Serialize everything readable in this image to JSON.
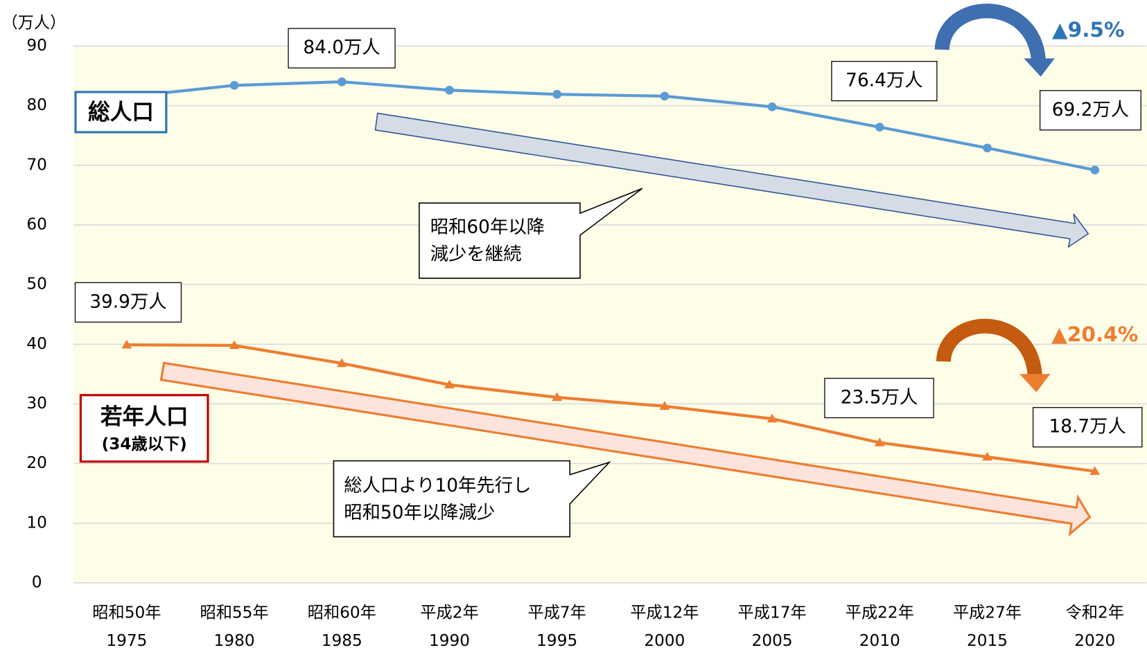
{
  "chart_data": {
    "type": "line",
    "y_unit": "（万人）",
    "categories": [
      "昭和50年",
      "昭和55年",
      "昭和60年",
      "平成2年",
      "平成7年",
      "平成12年",
      "平成17年",
      "平成22年",
      "平成27年",
      "令和2年"
    ],
    "years": [
      1975,
      1980,
      1985,
      1990,
      1995,
      2000,
      2005,
      2010,
      2015,
      2020
    ],
    "ylim": [
      0,
      90
    ],
    "yticks": [
      0,
      10,
      20,
      30,
      40,
      50,
      60,
      70,
      80,
      90
    ],
    "grid": true,
    "series": [
      {
        "name": "総人口",
        "color": "#5b9bd5",
        "marker": "circle",
        "values": [
          81.5,
          83.4,
          84.0,
          82.6,
          81.9,
          81.6,
          79.8,
          76.4,
          72.9,
          69.2
        ],
        "value_labels": [
          null,
          null,
          "84.0万人",
          null,
          null,
          null,
          null,
          "76.4万人",
          null,
          "69.2万人"
        ],
        "change": "▲9.5%",
        "change_color": "#2e75b6"
      },
      {
        "name": "若年人口",
        "name_note": "(34歳以下)",
        "color": "#ed7d31",
        "marker": "triangle",
        "values": [
          39.9,
          39.8,
          36.8,
          33.2,
          31.1,
          29.6,
          27.5,
          23.5,
          21.1,
          18.7
        ],
        "value_labels": [
          "39.9万人",
          null,
          null,
          null,
          null,
          null,
          null,
          "23.5万人",
          null,
          "18.7万人"
        ],
        "change": "▲20.4%",
        "change_color": "#ed7d31"
      }
    ],
    "callouts": [
      [
        "昭和60年以降",
        "減少を継続"
      ],
      [
        "総人口より10年先行し",
        "昭和50年以降減少"
      ]
    ]
  }
}
